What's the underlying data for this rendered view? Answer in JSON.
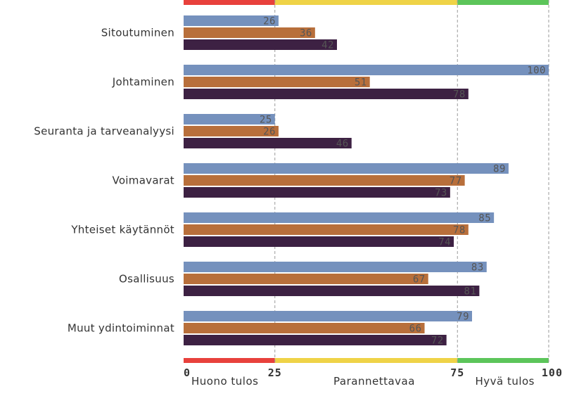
{
  "chart_data": {
    "type": "bar",
    "orientation": "horizontal",
    "categories": [
      "Sitoutuminen",
      "Johtaminen",
      "Seuranta ja tarveanalyysi",
      "Voimavarat",
      "Yhteiset käytännöt",
      "Osallisuus",
      "Muut ydintoiminnat"
    ],
    "series": [
      {
        "color": "#7591bd",
        "values": [
          26,
          100,
          25,
          89,
          85,
          83,
          79
        ]
      },
      {
        "color": "#b86f3b",
        "values": [
          36,
          51,
          26,
          77,
          78,
          67,
          66
        ]
      },
      {
        "color": "#3d2143",
        "values": [
          42,
          78,
          46,
          73,
          74,
          81,
          72
        ]
      }
    ],
    "xlim": [
      0,
      100
    ],
    "x_ticks": [
      "0",
      "25",
      "75",
      "100"
    ],
    "x_tick_values": [
      0,
      25,
      75,
      100
    ],
    "reference_lines": [
      25,
      75,
      100
    ],
    "zones": [
      {
        "from": 0,
        "to": 25,
        "label": "Huono tulos",
        "color": "#e8413c"
      },
      {
        "from": 25,
        "to": 75,
        "label": "Parannettavaa",
        "color": "#efd347"
      },
      {
        "from": 75,
        "to": 100,
        "label": "Hyvä tulos",
        "color": "#5cc55a"
      }
    ],
    "title": "",
    "xlabel": "",
    "ylabel": "",
    "grid": false,
    "legend": "none"
  }
}
